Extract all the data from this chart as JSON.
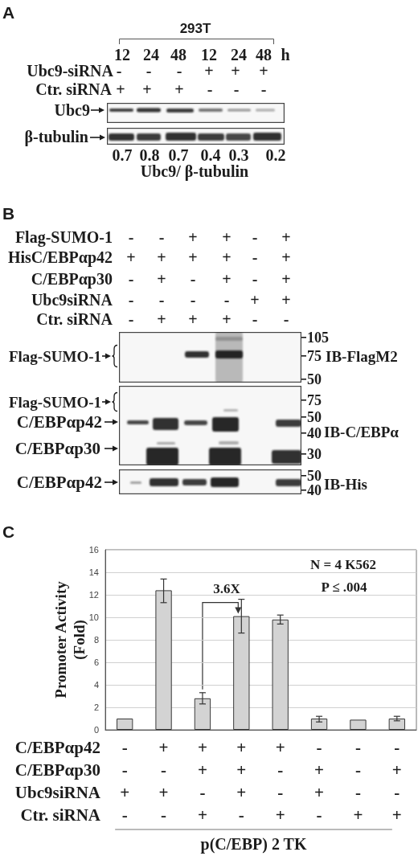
{
  "chart_data": [
    {
      "type": "other",
      "title": "A",
      "annotations": [
        "293T",
        "12 24 48 12 24 48 h",
        "Ubc9-siRNA",
        "- - - + + +",
        "Ctr. siRNA",
        "+ + + - - -",
        "Ubc9",
        "β-tubulin",
        "0.7 0.8 0.7 0.4 0.3 0.2",
        "Ubc9/ β-tubulin"
      ]
    },
    {
      "type": "other",
      "title": "B",
      "annotations": [
        "Flag-SUMO-1",
        "- - + + - +",
        "HisC/EBPαp42",
        "+ + + + - +",
        "C/EBPαp30",
        "- + - + - +",
        "Ubc9siRNA",
        "- - - - + +",
        "Ctr. siRNA",
        "- + + + - -",
        "Flag-SUMO-1",
        "105",
        "75",
        "IB-FlagM2",
        "50",
        "Flag-SUMO-1",
        "75",
        "C/EBPαp42",
        "50",
        "40",
        "IB-C/EBPα",
        "C/EBPαp30",
        "30",
        "C/EBPαp42",
        "50",
        "40",
        "IB-His"
      ]
    },
    {
      "type": "bar",
      "title": "C",
      "categories": [
        "-\n-\n+\n-",
        "+\n-\n+\n-",
        "+\n+\n-\n+",
        "+\n+\n+\n-",
        "+\n-\n-\n+",
        "-\n+\n+\n-",
        "-\n-\n-\n+",
        "-\n+\n-\n+"
      ],
      "values": [
        1.0,
        12.4,
        2.8,
        10.1,
        9.8,
        1.0,
        0.9,
        1.0
      ],
      "errors": [
        null,
        [
          11.3,
          13.4
        ],
        [
          2.3,
          3.3
        ],
        [
          8.6,
          11.6
        ],
        [
          9.4,
          10.2
        ],
        [
          0.7,
          1.2
        ],
        null,
        [
          0.8,
          1.2
        ]
      ],
      "color": "#d3d3d3",
      "ylim": [
        0,
        16
      ],
      "yticks": [
        0,
        2,
        4,
        6,
        8,
        10,
        12,
        14,
        16
      ],
      "grid": "y",
      "ylabel": "Promoter Activity\n(Fold)",
      "xlabel": "p(C/EBP) 2 TK",
      "annotations": [
        "N = 4 K562",
        "P ≤ .004",
        "3.6X",
        "C/EBPαp42",
        "C/EBPαp30",
        "Ubc9siRNA",
        "Ctr. siRNA"
      ]
    }
  ]
}
